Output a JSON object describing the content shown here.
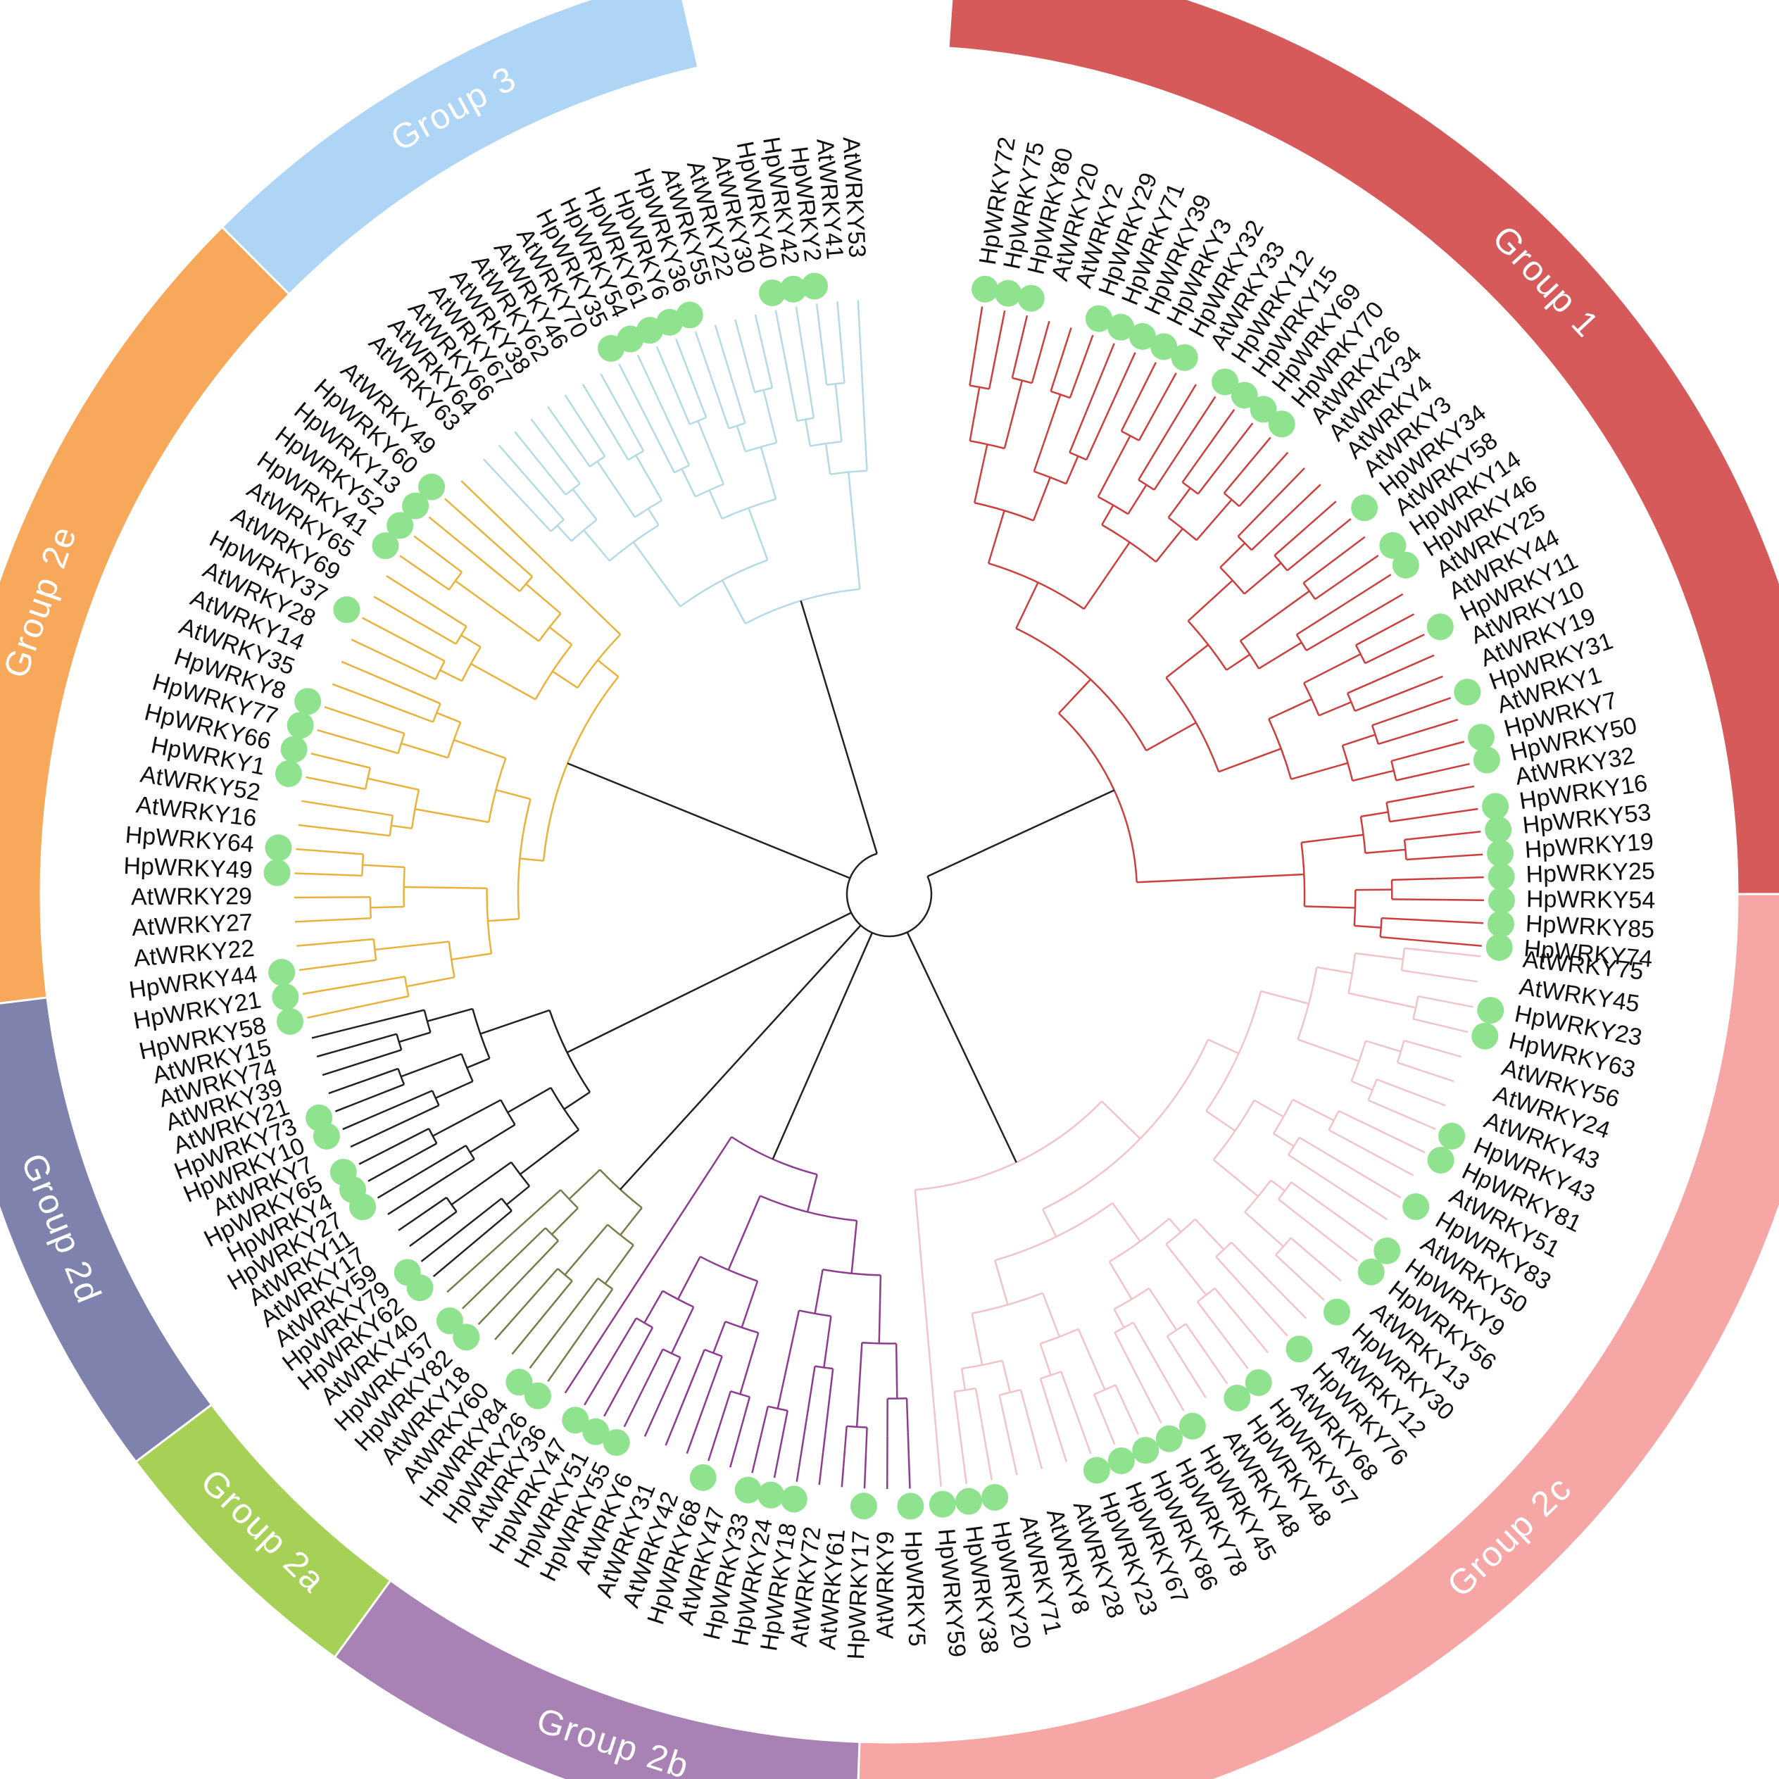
{
  "figure": {
    "type": "circular-phylogenetic-tree",
    "colors": {
      "group_1": "#d65a5a",
      "group_2c": "#f7a6a6",
      "group_2b": "#a882b5",
      "group_2a": "#a6d056",
      "group_2d": "#8082ae",
      "group_2e": "#f8a85a",
      "group_3": "#aed4f6",
      "branch_1": "#cc3f3f",
      "branch_2c": "#f1c4c8",
      "branch_2b": "#8e3c8e",
      "branch_2a": "#7a7a4a",
      "branch_2d": "#222222",
      "branch_2e": "#e9b23a",
      "branch_3": "#b4dae6",
      "branch_root": "#222222",
      "marker": "#8fe38f"
    }
  },
  "groups": [
    {
      "id": "group_1",
      "label": "Group 1",
      "leaves": [
        {
          "name": "HpWRKY72",
          "hp": true
        },
        {
          "name": "HpWRKY75",
          "hp": true
        },
        {
          "name": "HpWRKY80",
          "hp": true
        },
        {
          "name": "AtWRKY20",
          "hp": false
        },
        {
          "name": "AtWRKY2",
          "hp": false
        },
        {
          "name": "HpWRKY29",
          "hp": true
        },
        {
          "name": "HpWRKY71",
          "hp": true
        },
        {
          "name": "HpWRKY39",
          "hp": true
        },
        {
          "name": "HpWRKY3",
          "hp": true
        },
        {
          "name": "HpWRKY32",
          "hp": true
        },
        {
          "name": "AtWRKY33",
          "hp": false
        },
        {
          "name": "HpWRKY12",
          "hp": true
        },
        {
          "name": "HpWRKY15",
          "hp": true
        },
        {
          "name": "HpWRKY69",
          "hp": true
        },
        {
          "name": "HpWRKY70",
          "hp": true
        },
        {
          "name": "AtWRKY26",
          "hp": false
        },
        {
          "name": "AtWRKY34",
          "hp": false
        },
        {
          "name": "AtWRKY4",
          "hp": false
        },
        {
          "name": "AtWRKY3",
          "hp": false
        },
        {
          "name": "HpWRKY34",
          "hp": true
        },
        {
          "name": "AtWRKY58",
          "hp": false
        },
        {
          "name": "HpWRKY14",
          "hp": true
        },
        {
          "name": "HpWRKY46",
          "hp": true
        },
        {
          "name": "AtWRKY25",
          "hp": false
        },
        {
          "name": "AtWRKY44",
          "hp": false
        },
        {
          "name": "HpWRKY11",
          "hp": true
        },
        {
          "name": "AtWRKY10",
          "hp": false
        },
        {
          "name": "AtWRKY19",
          "hp": false
        },
        {
          "name": "HpWRKY31",
          "hp": true
        },
        {
          "name": "AtWRKY1",
          "hp": false
        },
        {
          "name": "HpWRKY7",
          "hp": true
        },
        {
          "name": "HpWRKY50",
          "hp": true
        },
        {
          "name": "AtWRKY32",
          "hp": false
        },
        {
          "name": "HpWRKY16",
          "hp": true
        },
        {
          "name": "HpWRKY53",
          "hp": true
        },
        {
          "name": "HpWRKY19",
          "hp": true
        },
        {
          "name": "HpWRKY25",
          "hp": true
        },
        {
          "name": "HpWRKY54",
          "hp": true
        },
        {
          "name": "HpWRKY85",
          "hp": true
        },
        {
          "name": "HpWRKY74",
          "hp": true
        }
      ]
    },
    {
      "id": "group_2c",
      "label": "Group 2c",
      "leaves": [
        {
          "name": "AtWRKY75",
          "hp": false
        },
        {
          "name": "AtWRKY45",
          "hp": false
        },
        {
          "name": "HpWRKY23",
          "hp": true
        },
        {
          "name": "HpWRKY63",
          "hp": true
        },
        {
          "name": "AtWRKY56",
          "hp": false
        },
        {
          "name": "AtWRKY24",
          "hp": false
        },
        {
          "name": "AtWRKY43",
          "hp": false
        },
        {
          "name": "HpWRKY43",
          "hp": true
        },
        {
          "name": "HpWRKY81",
          "hp": true
        },
        {
          "name": "AtWRKY51",
          "hp": false
        },
        {
          "name": "HpWRKY83",
          "hp": true
        },
        {
          "name": "AtWRKY50",
          "hp": false
        },
        {
          "name": "HpWRKY9",
          "hp": true
        },
        {
          "name": "HpWRKY56",
          "hp": true
        },
        {
          "name": "AtWRKY13",
          "hp": false
        },
        {
          "name": "HpWRKY30",
          "hp": true
        },
        {
          "name": "AtWRKY12",
          "hp": false
        },
        {
          "name": "HpWRKY76",
          "hp": true
        },
        {
          "name": "AtWRKY68",
          "hp": false
        },
        {
          "name": "HpWRKY57",
          "hp": true
        },
        {
          "name": "HpWRKY48",
          "hp": true
        },
        {
          "name": "AtWRKY48",
          "hp": false
        },
        {
          "name": "HpWRKY45",
          "hp": true
        },
        {
          "name": "HpWRKY78",
          "hp": true
        },
        {
          "name": "HpWRKY86",
          "hp": true
        },
        {
          "name": "HpWRKY67",
          "hp": true
        },
        {
          "name": "HpWRKY23",
          "hp": true
        },
        {
          "name": "AtWRKY28",
          "hp": false
        },
        {
          "name": "AtWRKY8",
          "hp": false
        },
        {
          "name": "AtWRKY71",
          "hp": false
        },
        {
          "name": "HpWRKY20",
          "hp": true
        },
        {
          "name": "HpWRKY38",
          "hp": true
        },
        {
          "name": "HpWRKY59",
          "hp": true
        }
      ]
    },
    {
      "id": "group_2b",
      "label": "Group 2b",
      "leaves": [
        {
          "name": "HpWRKY5",
          "hp": true
        },
        {
          "name": "AtWRKY9",
          "hp": false
        },
        {
          "name": "HpWRKY17",
          "hp": true
        },
        {
          "name": "AtWRKY61",
          "hp": false
        },
        {
          "name": "AtWRKY72",
          "hp": false
        },
        {
          "name": "HpWRKY18",
          "hp": true
        },
        {
          "name": "HpWRKY24",
          "hp": true
        },
        {
          "name": "HpWRKY33",
          "hp": true
        },
        {
          "name": "AtWRKY47",
          "hp": false
        },
        {
          "name": "HpWRKY68",
          "hp": true
        },
        {
          "name": "AtWRKY42",
          "hp": false
        },
        {
          "name": "AtWRKY31",
          "hp": false
        },
        {
          "name": "AtWRKY6",
          "hp": false
        },
        {
          "name": "HpWRKY55",
          "hp": true
        },
        {
          "name": "HpWRKY51",
          "hp": true
        },
        {
          "name": "HpWRKY47",
          "hp": true
        },
        {
          "name": "AtWRKY36",
          "hp": false
        }
      ]
    },
    {
      "id": "group_2a",
      "label": "Group 2a",
      "leaves": [
        {
          "name": "HpWRKY26",
          "hp": true
        },
        {
          "name": "HpWRKY84",
          "hp": true
        },
        {
          "name": "AtWRKY60",
          "hp": false
        },
        {
          "name": "AtWRKY18",
          "hp": false
        },
        {
          "name": "HpWRKY82",
          "hp": true
        },
        {
          "name": "HpWRKY57",
          "hp": true
        },
        {
          "name": "AtWRKY40",
          "hp": false
        }
      ]
    },
    {
      "id": "group_2d",
      "label": "Group 2d",
      "leaves": [
        {
          "name": "HpWRKY62",
          "hp": true
        },
        {
          "name": "HpWRKY79",
          "hp": true
        },
        {
          "name": "AtWRKY59",
          "hp": false
        },
        {
          "name": "AtWRKY17",
          "hp": false
        },
        {
          "name": "AtWRKY11",
          "hp": false
        },
        {
          "name": "HpWRKY27",
          "hp": true
        },
        {
          "name": "HpWRKY4",
          "hp": true
        },
        {
          "name": "HpWRKY65",
          "hp": true
        },
        {
          "name": "AtWRKY7",
          "hp": false
        },
        {
          "name": "HpWRKY10",
          "hp": true
        },
        {
          "name": "HpWRKY73",
          "hp": true
        },
        {
          "name": "AtWRKY21",
          "hp": false
        },
        {
          "name": "AtWRKY39",
          "hp": false
        },
        {
          "name": "AtWRKY74",
          "hp": false
        },
        {
          "name": "AtWRKY15",
          "hp": false
        }
      ]
    },
    {
      "id": "group_2e",
      "label": "Group 2e",
      "leaves": [
        {
          "name": "HpWRKY58",
          "hp": true
        },
        {
          "name": "HpWRKY21",
          "hp": true
        },
        {
          "name": "HpWRKY44",
          "hp": true
        },
        {
          "name": "AtWRKY22",
          "hp": false
        },
        {
          "name": "AtWRKY27",
          "hp": false
        },
        {
          "name": "AtWRKY29",
          "hp": false
        },
        {
          "name": "HpWRKY49",
          "hp": true
        },
        {
          "name": "HpWRKY64",
          "hp": true
        },
        {
          "name": "AtWRKY16",
          "hp": false
        },
        {
          "name": "AtWRKY52",
          "hp": false
        },
        {
          "name": "HpWRKY1",
          "hp": true
        },
        {
          "name": "HpWRKY66",
          "hp": true
        },
        {
          "name": "HpWRKY77",
          "hp": true
        },
        {
          "name": "HpWRKY8",
          "hp": true
        },
        {
          "name": "AtWRKY35",
          "hp": false
        },
        {
          "name": "AtWRKY14",
          "hp": false
        },
        {
          "name": "AtWRKY28",
          "hp": false
        },
        {
          "name": "HpWRKY37",
          "hp": true
        },
        {
          "name": "AtWRKY69",
          "hp": false
        },
        {
          "name": "AtWRKY65",
          "hp": false
        },
        {
          "name": "HpWRKY41",
          "hp": true
        },
        {
          "name": "HpWRKY52",
          "hp": true
        },
        {
          "name": "HpWRKY13",
          "hp": true
        },
        {
          "name": "HpWRKY60",
          "hp": true
        },
        {
          "name": "AtWRKY49",
          "hp": false
        }
      ]
    },
    {
      "id": "group_3",
      "label": "Group 3",
      "leaves": [
        {
          "name": "AtWRKY63",
          "hp": false
        },
        {
          "name": "AtWRKY64",
          "hp": false
        },
        {
          "name": "AtWRKY66",
          "hp": false
        },
        {
          "name": "AtWRKY67",
          "hp": false
        },
        {
          "name": "AtWRKY38",
          "hp": false
        },
        {
          "name": "AtWRKY62",
          "hp": false
        },
        {
          "name": "AtWRKY46",
          "hp": false
        },
        {
          "name": "AtWRKY70",
          "hp": false
        },
        {
          "name": "HpWRKY35",
          "hp": true
        },
        {
          "name": "HpWRKY54",
          "hp": true
        },
        {
          "name": "HpWRKY61",
          "hp": true
        },
        {
          "name": "HpWRKY6",
          "hp": true
        },
        {
          "name": "HpWRKY36",
          "hp": true
        },
        {
          "name": "AtWRKY55",
          "hp": false
        },
        {
          "name": "AtWRKY22",
          "hp": false
        },
        {
          "name": "AtWRKY30",
          "hp": false
        },
        {
          "name": "HpWRKY40",
          "hp": true
        },
        {
          "name": "HpWRKY42",
          "hp": true
        },
        {
          "name": "HpWRKY2",
          "hp": true
        },
        {
          "name": "AtWRKY41",
          "hp": false
        },
        {
          "name": "AtWRKY53",
          "hp": false
        }
      ]
    }
  ]
}
